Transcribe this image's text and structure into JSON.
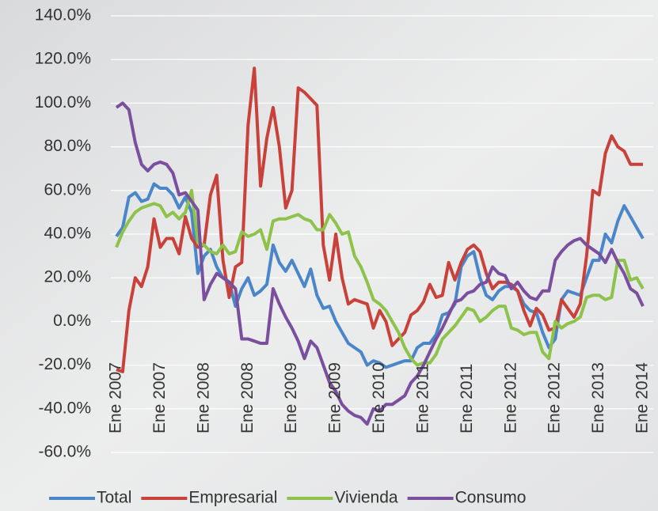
{
  "chart_data": {
    "type": "line",
    "categories": [
      "Ene 2007",
      null,
      null,
      null,
      null,
      null,
      null,
      "Ene 2007",
      null,
      null,
      null,
      null,
      null,
      null,
      "Ene 2008",
      null,
      null,
      null,
      null,
      null,
      null,
      "Ene 2008",
      null,
      null,
      null,
      null,
      null,
      null,
      "Ene 2009",
      null,
      null,
      null,
      null,
      null,
      null,
      "Ene 2009",
      null,
      null,
      null,
      null,
      null,
      null,
      "Ene 2010",
      null,
      null,
      null,
      null,
      null,
      null,
      "Ene 2011",
      null,
      null,
      null,
      null,
      null,
      null,
      "Ene 2011",
      null,
      null,
      null,
      null,
      null,
      null,
      "Ene 2012",
      null,
      null,
      null,
      null,
      null,
      null,
      "Ene 2012",
      null,
      null,
      null,
      null,
      null,
      null,
      "Ene 2013",
      null,
      null,
      null,
      null,
      null,
      null,
      "Ene 2014"
    ],
    "series": [
      {
        "name": "Total",
        "color": "#4a86c8",
        "values": [
          39,
          43,
          57,
          59,
          55,
          56,
          63,
          61,
          61,
          58,
          52,
          57,
          50,
          22,
          30,
          33,
          25,
          20,
          18,
          7,
          15,
          20,
          12,
          14,
          17,
          35,
          27,
          23,
          28,
          22,
          16,
          24,
          12,
          6,
          7,
          0,
          -5,
          -10,
          -12,
          -14,
          -20,
          -18,
          -19,
          -21,
          -20,
          -19,
          -18,
          -18,
          -12,
          -10,
          -10,
          -6,
          3,
          4,
          8,
          25,
          30,
          32,
          20,
          12,
          10,
          14,
          16,
          16,
          14,
          8,
          5,
          4,
          -5,
          -12,
          -8,
          10,
          14,
          13,
          12,
          20,
          28,
          28,
          40,
          36,
          46,
          53,
          48,
          43,
          38
        ]
      },
      {
        "name": "Empresarial",
        "color": "#c8413a",
        "values": [
          -22,
          -23,
          5,
          20,
          16,
          25,
          47,
          34,
          38,
          38,
          31,
          48,
          38,
          34,
          35,
          58,
          67,
          28,
          11,
          25,
          27,
          90,
          116,
          62,
          84,
          98,
          80,
          52,
          60,
          107,
          105,
          102,
          99,
          35,
          19,
          40,
          20,
          8,
          10,
          9,
          8,
          -3,
          5,
          0,
          -11,
          -8,
          -5,
          3,
          5,
          9,
          17,
          11,
          12,
          27,
          19,
          27,
          33,
          35,
          32,
          22,
          15,
          18,
          18,
          17,
          14,
          5,
          -2,
          6,
          3,
          -4,
          -3,
          10,
          6,
          2,
          8,
          30,
          60,
          58,
          77,
          85,
          80,
          78,
          72,
          72,
          72
        ]
      },
      {
        "name": "Vivienda",
        "color": "#8dc34a",
        "values": [
          34,
          41,
          46,
          50,
          52,
          53,
          54,
          53,
          48,
          50,
          47,
          50,
          60,
          36,
          35,
          32,
          31,
          35,
          31,
          32,
          41,
          39,
          40,
          42,
          33,
          46,
          47,
          47,
          48,
          49,
          47,
          46,
          42,
          42,
          49,
          45,
          40,
          41,
          30,
          25,
          18,
          10,
          8,
          5,
          0,
          -5,
          -12,
          -17,
          -20,
          -19,
          -19,
          -15,
          -8,
          -5,
          -2,
          2,
          6,
          5,
          0,
          2,
          5,
          7,
          7,
          -3,
          -4,
          -6,
          -5,
          -5,
          -14,
          -17,
          0,
          -3,
          -1,
          0,
          2,
          11,
          12,
          12,
          10,
          11,
          28,
          28,
          19,
          20,
          15
        ]
      },
      {
        "name": "Consumo",
        "color": "#7a4f9e",
        "values": [
          98,
          100,
          97,
          82,
          72,
          69,
          72,
          73,
          72,
          68,
          58,
          59,
          55,
          51,
          10,
          17,
          22,
          20,
          18,
          15,
          -8,
          -8,
          -9,
          -10,
          -10,
          15,
          8,
          2,
          -3,
          -9,
          -17,
          -9,
          -12,
          -20,
          -28,
          -32,
          -38,
          -41,
          -43,
          -44,
          -47,
          -40,
          -41,
          -38,
          -38,
          -36,
          -34,
          -28,
          -25,
          -20,
          -14,
          -8,
          -3,
          3,
          9,
          10,
          13,
          14,
          17,
          18,
          25,
          22,
          21,
          15,
          18,
          14,
          11,
          10,
          14,
          14,
          28,
          32,
          35,
          37,
          38,
          35,
          33,
          31,
          27,
          33,
          27,
          22,
          15,
          13,
          7
        ]
      }
    ],
    "ylim": [
      -60,
      140
    ],
    "yticks": [
      {
        "value": -60,
        "label": "-60.0%"
      },
      {
        "value": -40,
        "label": "-40.0%"
      },
      {
        "value": -20,
        "label": "-20.0%"
      },
      {
        "value": 0,
        "label": "0.0%"
      },
      {
        "value": 20,
        "label": "20.0%"
      },
      {
        "value": 40,
        "label": "40.0%"
      },
      {
        "value": 60,
        "label": "60.0%"
      },
      {
        "value": 80,
        "label": "80.0%"
      },
      {
        "value": 100,
        "label": "100.0%"
      },
      {
        "value": 120,
        "label": "120.0%"
      },
      {
        "value": 140,
        "label": "140.0%"
      }
    ],
    "grid": true
  }
}
